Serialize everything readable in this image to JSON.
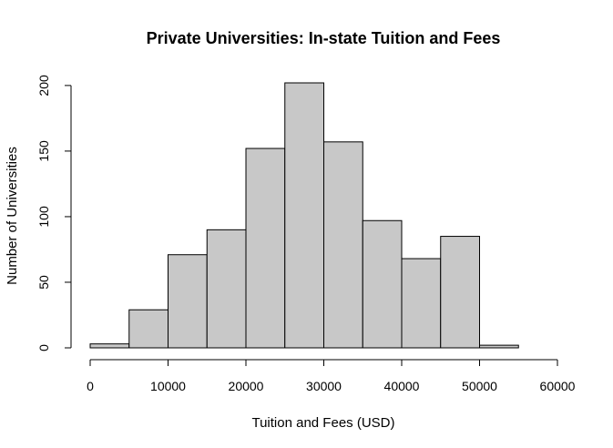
{
  "chart_data": {
    "type": "bar",
    "title": "Private Universities: In-state Tuition and Fees",
    "xlabel": "Tuition and Fees (USD)",
    "ylabel": "Number of Universities",
    "bins": [
      {
        "start": 0,
        "end": 5000,
        "count": 3
      },
      {
        "start": 5000,
        "end": 10000,
        "count": 29
      },
      {
        "start": 10000,
        "end": 15000,
        "count": 71
      },
      {
        "start": 15000,
        "end": 20000,
        "count": 90
      },
      {
        "start": 20000,
        "end": 25000,
        "count": 152
      },
      {
        "start": 25000,
        "end": 30000,
        "count": 202
      },
      {
        "start": 30000,
        "end": 35000,
        "count": 157
      },
      {
        "start": 35000,
        "end": 40000,
        "count": 97
      },
      {
        "start": 40000,
        "end": 45000,
        "count": 68
      },
      {
        "start": 45000,
        "end": 50000,
        "count": 85
      },
      {
        "start": 50000,
        "end": 55000,
        "count": 2
      }
    ],
    "x_ticks": [
      0,
      10000,
      20000,
      30000,
      40000,
      50000,
      60000
    ],
    "y_ticks": [
      0,
      50,
      100,
      150,
      200
    ],
    "xlim": [
      0,
      60000
    ],
    "ylim": [
      0,
      202
    ],
    "grid": false,
    "bar_color": "#c8c8c8",
    "edge_color": "#000000"
  }
}
